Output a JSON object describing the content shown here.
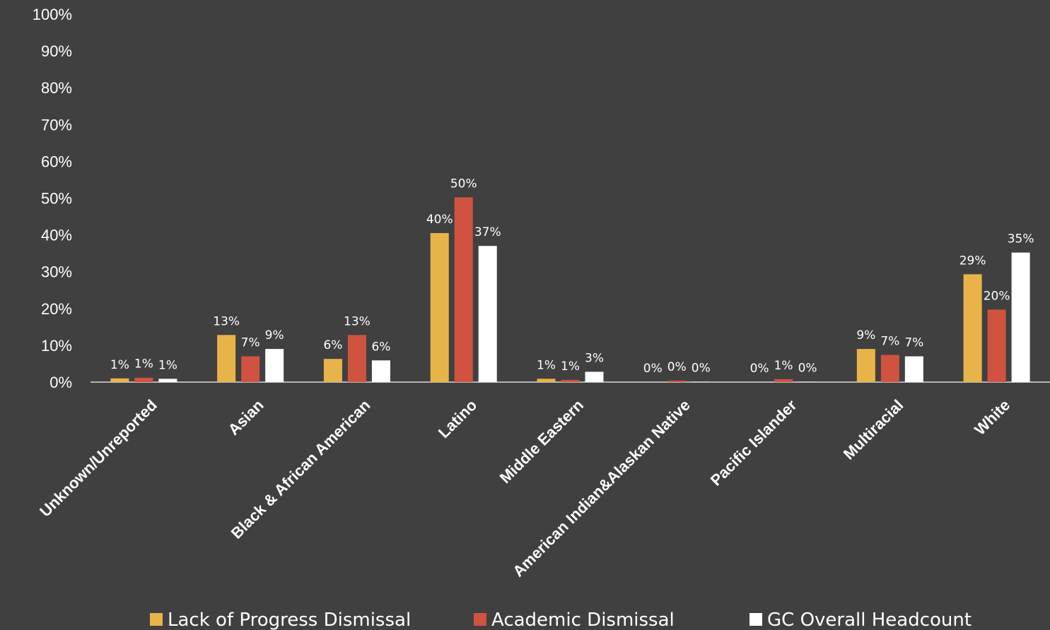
{
  "chart_data": {
    "type": "bar",
    "title": "",
    "xlabel": "",
    "ylabel": "",
    "ylim": [
      0,
      100
    ],
    "yticks": [
      "0%",
      "10%",
      "20%",
      "30%",
      "40%",
      "50%",
      "60%",
      "70%",
      "80%",
      "90%",
      "100%"
    ],
    "value_suffix": "%",
    "grid": false,
    "legend_position": "bottom",
    "categories": [
      "Unknown/Unreported",
      "Asian",
      "Black & African American",
      "Latino",
      "Middle Eastern",
      "American Indian&Alaskan Native",
      "Pacific Islander",
      "Multiracial",
      "White"
    ],
    "series": [
      {
        "name": "Lack of Progress Dismissal",
        "color": "#E8B44A",
        "values": [
          1,
          13,
          6,
          40,
          1,
          0,
          0,
          9,
          29
        ],
        "bar_values": [
          1.0,
          12.8,
          6.3,
          40.5,
          0.9,
          0.0,
          0.0,
          9.0,
          29.3
        ],
        "labels": [
          "1%",
          "13%",
          "6%",
          "40%",
          "1%",
          "0%",
          "0%",
          "9%",
          "29%"
        ]
      },
      {
        "name": "Academic  Dismissal",
        "color": "#D05340",
        "values": [
          1,
          7,
          13,
          50,
          1,
          0,
          1,
          7,
          20
        ],
        "bar_values": [
          1.2,
          7.0,
          12.8,
          50.2,
          0.6,
          0.4,
          0.8,
          7.4,
          19.7
        ],
        "labels": [
          "1%",
          "7%",
          "13%",
          "50%",
          "1%",
          "0%",
          "1%",
          "7%",
          "20%"
        ]
      },
      {
        "name": "GC Overall Headcount",
        "color": "#FFFFFF",
        "values": [
          1,
          9,
          6,
          37,
          3,
          0,
          0,
          7,
          35
        ],
        "bar_values": [
          0.9,
          9.0,
          5.9,
          37.0,
          2.8,
          0.1,
          0.1,
          7.0,
          35.2
        ],
        "labels": [
          "1%",
          "9%",
          "6%",
          "37%",
          "3%",
          "0%",
          "0%",
          "7%",
          "35%"
        ]
      }
    ]
  }
}
